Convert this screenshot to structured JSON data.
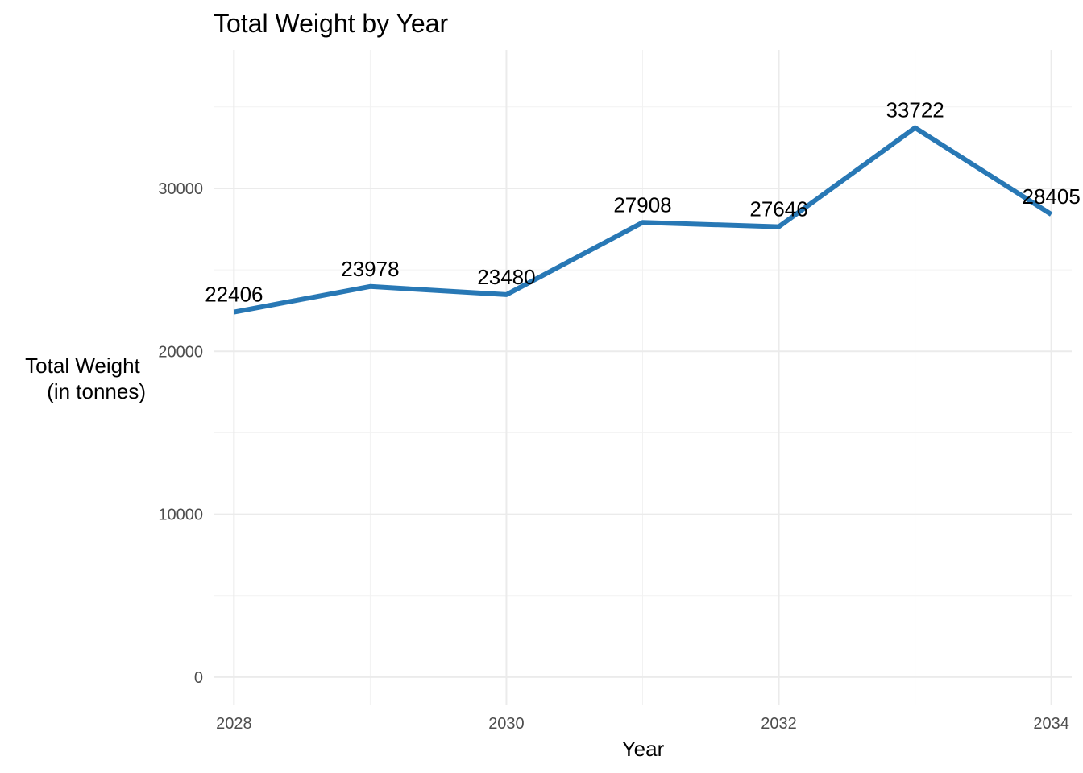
{
  "chart_data": {
    "type": "line",
    "title": "Total Weight by Year",
    "xlabel": "Year",
    "ylabel_lines": [
      "Total Weight",
      "(in tonnes)"
    ],
    "x": [
      2028,
      2029,
      2030,
      2031,
      2032,
      2033,
      2034
    ],
    "series": [
      {
        "values": [
          22406,
          23978,
          23480,
          27908,
          27646,
          33722,
          28405
        ]
      }
    ],
    "data_labels": [
      "22406",
      "23978",
      "23480",
      "27908",
      "27646",
      "33722",
      "28405"
    ],
    "x_ticks": [
      2028,
      2030,
      2032,
      2034
    ],
    "x_tick_labels": [
      "2028",
      "2030",
      "2032",
      "2034"
    ],
    "y_ticks": [
      0,
      10000,
      20000,
      30000
    ],
    "y_tick_labels": [
      "0",
      "10000",
      "20000",
      "30000"
    ],
    "xlim": [
      2027.85,
      2034.15
    ],
    "ylim": [
      -1686,
      38500
    ],
    "line_color": "#2878b5",
    "grid": true,
    "legend": "none"
  }
}
